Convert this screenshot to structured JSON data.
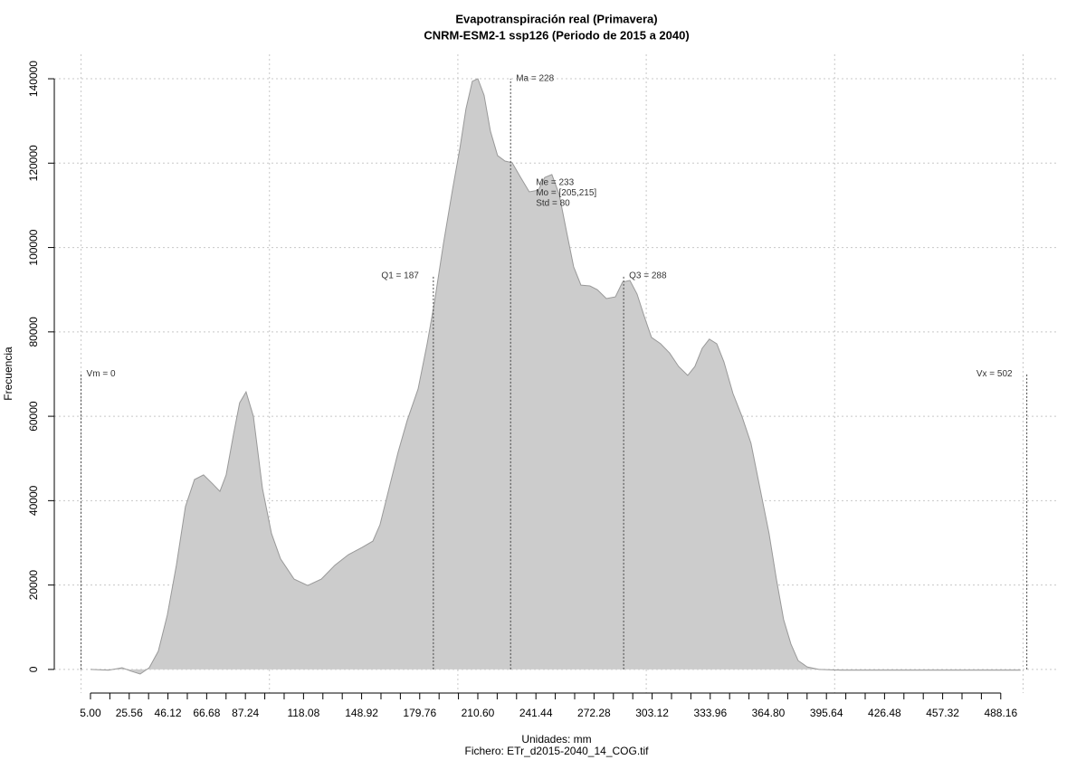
{
  "chart_data": {
    "type": "density",
    "title": "Evapotranspiración real (Primavera)",
    "subtitle": "CNRM-ESM2-1 ssp126 (Periodo de 2015 a 2040)",
    "xlabel": "Unidades: mm",
    "caption": "Fichero: ETr_d2015-2040_14_COG.tif",
    "ylabel": "Frecuencia",
    "color": "#cccccc",
    "x": [
      5,
      14.6,
      21.8,
      26.6,
      31.4,
      36.2,
      41,
      45.8,
      50.6,
      55.4,
      60.2,
      65,
      69.8,
      73.7,
      77,
      80.9,
      84.2,
      87.6,
      91.5,
      96.3,
      101.1,
      105.9,
      113.1,
      120.3,
      127.5,
      134.7,
      141.9,
      149.1,
      154.9,
      158.7,
      163.5,
      168.3,
      173.1,
      178.9,
      183.7,
      187.5,
      192.3,
      197.1,
      201,
      204.3,
      207.7,
      210.6,
      213.9,
      217.3,
      221.1,
      225,
      228.8,
      233.1,
      237.9,
      242.7,
      246.1,
      249.9,
      253.8,
      257.6,
      261.5,
      265.3,
      270.1,
      274,
      278.8,
      283.6,
      287.4,
      291.3,
      295.1,
      299,
      302.8,
      307.6,
      312.4,
      317.2,
      322,
      325.8,
      329.7,
      333.5,
      337.4,
      341.2,
      346,
      350.8,
      355.6,
      360.4,
      365.2,
      369.1,
      372.9,
      376.8,
      380.6,
      385.4,
      391.6,
      403.6,
      437.3,
      498.7
    ],
    "values": [
      0,
      -200,
      400,
      -400,
      -1100,
      400,
      4300,
      12900,
      24700,
      38600,
      45000,
      46100,
      44000,
      42200,
      46100,
      55700,
      63200,
      65800,
      60000,
      42900,
      32200,
      26200,
      21400,
      19900,
      21400,
      24700,
      27200,
      28900,
      30400,
      34300,
      42900,
      51500,
      59000,
      66500,
      77200,
      86800,
      100800,
      113600,
      123300,
      132900,
      139400,
      140000,
      136100,
      127600,
      121800,
      120500,
      120100,
      116800,
      113200,
      113600,
      116600,
      117300,
      112600,
      104000,
      95400,
      91100,
      90900,
      90000,
      87900,
      88300,
      91800,
      92200,
      89000,
      83600,
      78700,
      77200,
      75000,
      71800,
      69700,
      71800,
      76100,
      78300,
      77200,
      72900,
      65400,
      60000,
      53600,
      42900,
      32200,
      21400,
      11800,
      6000,
      2100,
      600,
      0,
      -200,
      -200,
      -200
    ],
    "xlim": [
      -14.2,
      519
    ],
    "ylim": [
      -5600,
      145800
    ],
    "xticks": [
      {
        "value": 5,
        "label": "5.00"
      },
      25.56,
      46.12,
      66.68,
      87.24,
      118.08,
      148.92,
      179.76,
      {
        "value": 210.6,
        "label": "210.60"
      },
      241.44,
      272.28,
      303.12,
      333.96,
      {
        "value": 364.8,
        "label": "364.80"
      },
      395.64,
      426.48,
      457.32,
      488.16
    ],
    "xminorticks": [
      15.28,
      35.84,
      56.4,
      76.96,
      97.52,
      107.8,
      128.36,
      138.64,
      159.2,
      169.48,
      190.04,
      200.32,
      220.88,
      231.16,
      251.72,
      262,
      282.56,
      292.84,
      313.4,
      323.68,
      344.24,
      354.52,
      375.08,
      385.36,
      405.92,
      416.2,
      436.76,
      447.04,
      467.6,
      477.88
    ],
    "xgrid": [
      0,
      100,
      200,
      300,
      400,
      500
    ],
    "yticks": [
      0,
      20000,
      40000,
      60000,
      80000,
      100000,
      120000,
      140000
    ],
    "grid": true,
    "markers": {
      "min": {
        "label": "Vm = 0",
        "value": 0
      },
      "q1": {
        "label": "Q1 = 187",
        "value": 187
      },
      "mean": {
        "label": "Ma = 228",
        "value": 228
      },
      "q3": {
        "label": "Q3 = 288",
        "value": 288
      },
      "max": {
        "label": "Vx = 502",
        "value": 502
      }
    },
    "stats": [
      "Me = 233",
      "Mo = [205,215]",
      "Std = 80"
    ]
  }
}
